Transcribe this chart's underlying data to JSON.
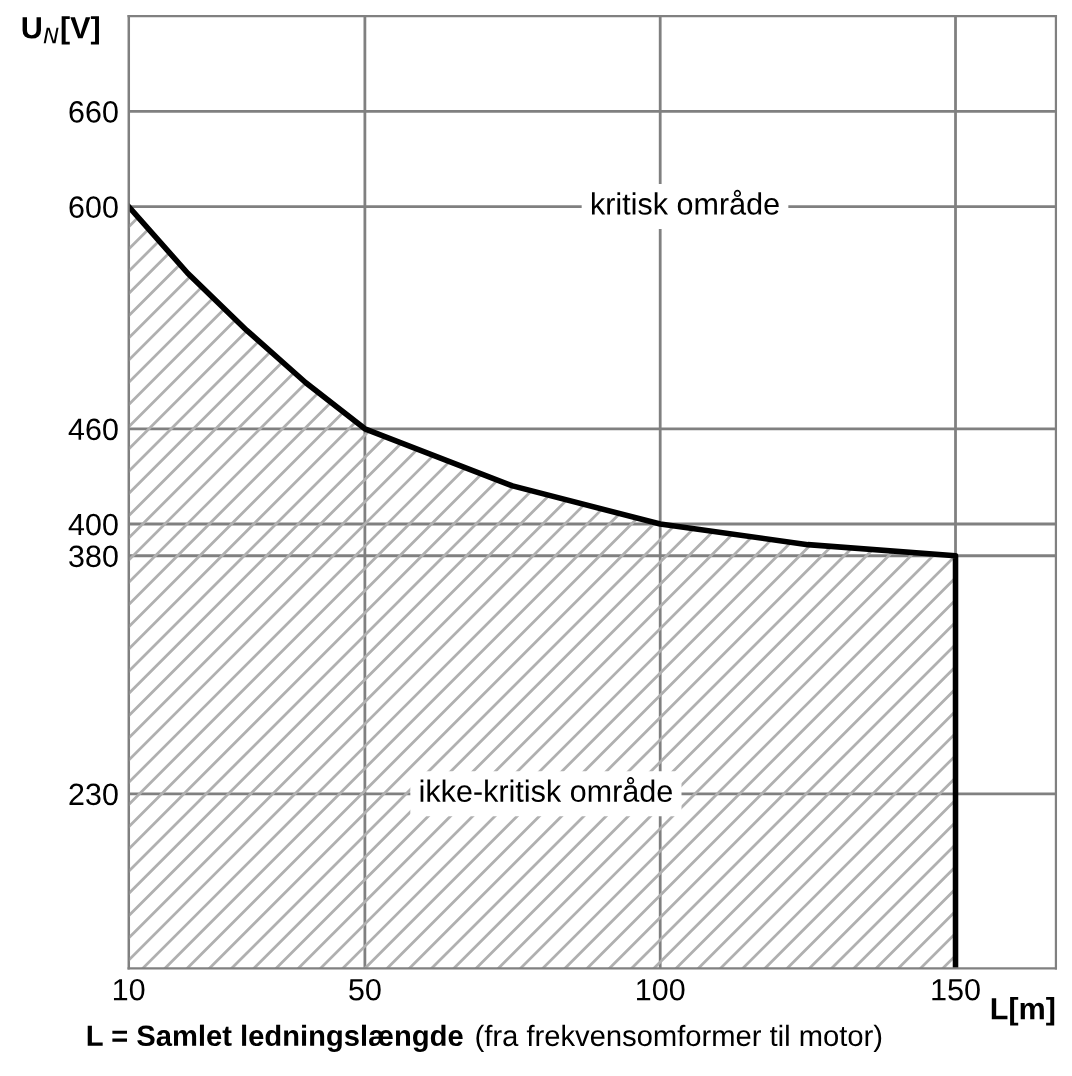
{
  "chart_data": {
    "type": "area",
    "xlabel": "L[m]",
    "ylabel": "U$_{N}$[V]",
    "x": [
      10,
      20,
      30,
      40,
      50,
      75,
      100,
      125,
      150
    ],
    "series": [
      {
        "color": "#000000",
        "values": [
          600,
          558,
          522,
          489,
          460,
          424,
          400,
          387,
          380
        ]
      }
    ],
    "xlim": [
      10,
      167
    ],
    "ylim": [
      120,
      720
    ],
    "xticks": [
      10,
      50,
      100,
      150
    ],
    "yticks": [
      230,
      380,
      400,
      460,
      600,
      660
    ],
    "grid": true,
    "annotations": [
      "kritisk område",
      "ikke-kritisk område",
      "L = Samlet ledningslængde",
      "(fra frekvensomformer til motor)"
    ]
  }
}
